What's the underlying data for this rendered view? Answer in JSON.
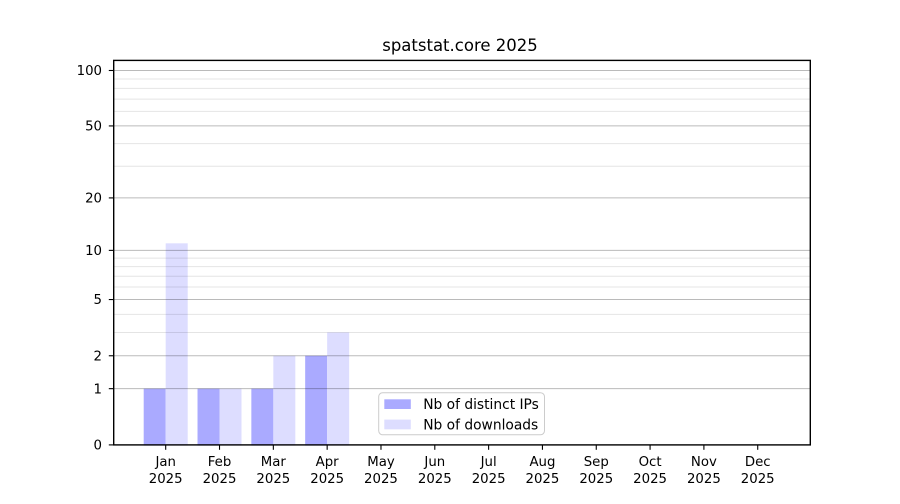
{
  "chart_data": {
    "type": "bar",
    "title": "spatstat.core 2025",
    "categories": [
      "Jan",
      "Feb",
      "Mar",
      "Apr",
      "May",
      "Jun",
      "Jul",
      "Aug",
      "Sep",
      "Oct",
      "Nov",
      "Dec"
    ],
    "x_tick_year": "2025",
    "series": [
      {
        "name": "Nb of distinct IPs",
        "color": "#aaaaff",
        "values": [
          1,
          1,
          1,
          2,
          0,
          0,
          0,
          0,
          0,
          0,
          0,
          0
        ]
      },
      {
        "name": "Nb of downloads",
        "color": "#ddddff",
        "values": [
          11,
          1,
          2,
          3,
          0,
          0,
          0,
          0,
          0,
          0,
          0,
          0
        ]
      }
    ],
    "y_scale": "log10(1+x)",
    "y_ticks": [
      0,
      1,
      2,
      5,
      10,
      20,
      50,
      100
    ],
    "y_minor_gridlines": [
      3,
      4,
      6,
      7,
      8,
      9,
      30,
      40,
      60,
      70,
      80,
      90
    ],
    "ylim": [
      0,
      112
    ],
    "grid": "on",
    "legend_position": "lower center"
  },
  "colors": {
    "background": "#ffffff",
    "axis": "#000000",
    "text": "#000000",
    "grid_major": "rgba(0,0,0,0.27)",
    "grid_minor": "rgba(0,0,0,0.105)",
    "legend_border": "#cccccc",
    "legend_background": "#ffffff"
  }
}
